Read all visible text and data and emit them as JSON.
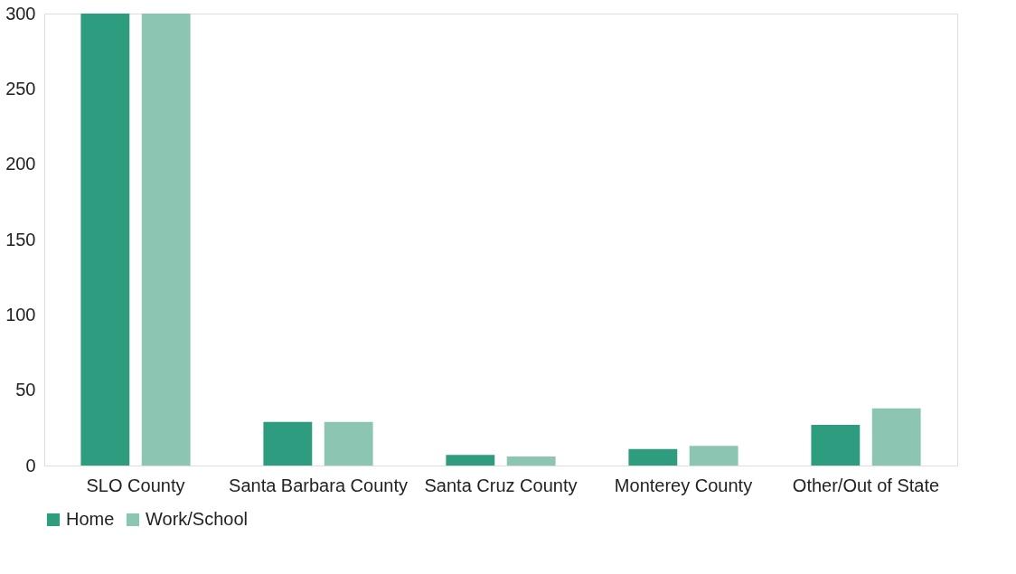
{
  "chart_data": {
    "type": "bar",
    "categories": [
      "SLO County",
      "Santa Barbara County",
      "Santa Cruz County",
      "Monterey County",
      "Other/Out of State"
    ],
    "series": [
      {
        "name": "Home",
        "color": "#2e9c7f",
        "values": [
          300,
          29,
          7,
          11,
          27
        ]
      },
      {
        "name": "Work/School",
        "color": "#8cc6b2",
        "values": [
          300,
          29,
          6,
          13,
          38
        ]
      }
    ],
    "ylim": [
      0,
      300
    ],
    "yticks": [
      0,
      50,
      100,
      150,
      200,
      250,
      300
    ],
    "grid": false,
    "legend": "bottom"
  }
}
